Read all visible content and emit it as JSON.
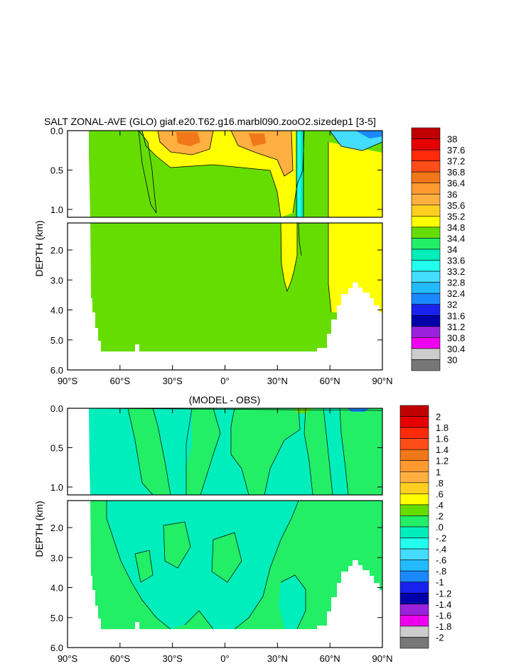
{
  "chart_data": [
    {
      "type": "heatmap",
      "title": "SALT ZONAL-AVE (GLO) giaf.e20.T62.g16.marbl090.zooO2.sizedep1 [3-5]",
      "xlabel": "",
      "ylabel": "DEPTH (km)",
      "x_ticks": [
        "90°S",
        "60°S",
        "30°S",
        "0°",
        "30°N",
        "60°N",
        "90°N"
      ],
      "x_tick_values": [
        -90,
        -60,
        -30,
        0,
        30,
        60,
        90
      ],
      "xlim": [
        -90,
        90
      ],
      "upper_panel": {
        "ylim": [
          0.0,
          1.1
        ],
        "y_ticks": [
          "0.0",
          "0.5",
          "1.0"
        ],
        "y_tick_values": [
          0.0,
          0.5,
          1.0
        ]
      },
      "lower_panel": {
        "ylim": [
          1.1,
          6.0
        ],
        "y_ticks": [
          "2.0",
          "3.0",
          "4.0",
          "5.0",
          "6.0"
        ],
        "y_tick_values": [
          2.0,
          3.0,
          4.0,
          5.0,
          6.0
        ]
      },
      "colorbar_levels": [
        "38",
        "37.6",
        "37.2",
        "36.8",
        "36.4",
        "36",
        "35.6",
        "35.2",
        "34.8",
        "34.4",
        "34",
        "33.6",
        "33.2",
        "32.8",
        "32.4",
        "32",
        "31.6",
        "31.2",
        "30.8",
        "30.4",
        "30"
      ],
      "colorbar_colors": [
        "#c00000",
        "#e60000",
        "#ff2a0a",
        "#ff4d1a",
        "#f07818",
        "#ff9a30",
        "#ffb040",
        "#ffd020",
        "#ffff00",
        "#66dd00",
        "#22ee66",
        "#00eebb",
        "#22ffee",
        "#44ddff",
        "#22bbff",
        "#1a88ff",
        "#1a22ee",
        "#0000aa",
        "#9a22dd",
        "#ee00ee",
        "#cccccc",
        "#777777"
      ],
      "dominant_values": {
        "deep_ocean": 34.7,
        "subtropical_surface_max": 36.4,
        "arctic_deep": 34.9
      }
    },
    {
      "type": "heatmap",
      "title": "(MODEL - OBS)",
      "xlabel": "",
      "ylabel": "DEPTH (km)",
      "x_ticks": [
        "90°S",
        "60°S",
        "30°S",
        "0°",
        "30°N",
        "60°N",
        "90°N"
      ],
      "x_tick_values": [
        -90,
        -60,
        -30,
        0,
        30,
        60,
        90
      ],
      "xlim": [
        -90,
        90
      ],
      "upper_panel": {
        "ylim": [
          0.0,
          1.1
        ],
        "y_ticks": [
          "0.0",
          "0.5",
          "1.0"
        ],
        "y_tick_values": [
          0.0,
          0.5,
          1.0
        ]
      },
      "lower_panel": {
        "ylim": [
          1.1,
          6.0
        ],
        "y_ticks": [
          "2.0",
          "3.0",
          "4.0",
          "5.0",
          "6.0"
        ],
        "y_tick_values": [
          2.0,
          3.0,
          4.0,
          5.0,
          6.0
        ]
      },
      "colorbar_levels": [
        "2",
        "1.8",
        "1.6",
        "1.4",
        "1.2",
        "1",
        ".8",
        ".6",
        ".4",
        ".2",
        ".0",
        "-.2",
        "-.4",
        "-.6",
        "-.8",
        "-1",
        "-1.2",
        "-1.4",
        "-1.6",
        "-1.8",
        "-2"
      ],
      "colorbar_colors": [
        "#c00000",
        "#e60000",
        "#ff2a0a",
        "#ff4d1a",
        "#f07818",
        "#ff9a30",
        "#ffb040",
        "#ffd020",
        "#ffff00",
        "#66dd00",
        "#22ee66",
        "#00eebb",
        "#22ffee",
        "#44ddff",
        "#22bbff",
        "#1a88ff",
        "#1a22ee",
        "#0000aa",
        "#9a22dd",
        "#ee00ee",
        "#cccccc",
        "#777777"
      ],
      "dominant_values": {
        "positive_bias": 0.1,
        "negative_bias": -0.1
      }
    }
  ],
  "colors": {
    "green": "#66dd00",
    "cyan": "#00eebb",
    "yellow": "#ffff00",
    "gold": "#ffd020",
    "orange": "#ffb040",
    "aqua": "#22ffee",
    "sky": "#44ddff",
    "blue": "#1a88ff",
    "land": "#ffffff",
    "line": "#000000"
  }
}
